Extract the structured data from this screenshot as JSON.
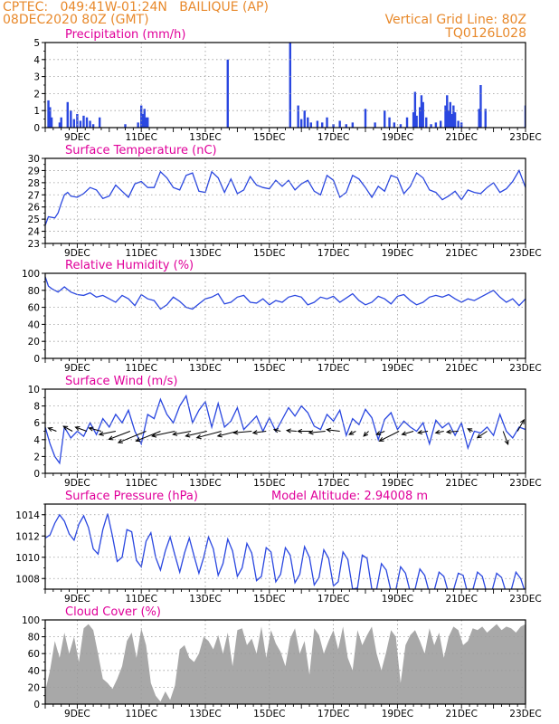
{
  "header": {
    "line1": "CPTEC:   049:41W-01:24N   BAILIQUE (AP)",
    "line2": "08DEC2020 80Z (GMT)",
    "right1": "Vertical Grid Line: 80Z",
    "right2": "TQ0126L028",
    "color": "#e8892b"
  },
  "colors": {
    "title": "#e0009a",
    "series": "#2a47e0",
    "cloud": "#a8a8a8",
    "grid": "#9a9a9a",
    "axis": "#000000"
  },
  "chart_data": [
    {
      "type": "bar",
      "title": "Precipitation (mm/h)",
      "ylim": [
        0,
        5
      ],
      "yticks": [
        0,
        1,
        2,
        3,
        4,
        5
      ],
      "x_range_days": [
        8.0,
        23.0
      ],
      "x_ticks": [
        "9DEC",
        "11DEC",
        "13DEC",
        "15DEC",
        "17DEC",
        "19DEC",
        "21DEC",
        "23DEC"
      ],
      "x": [
        8.1,
        8.15,
        8.2,
        8.45,
        8.5,
        8.7,
        8.8,
        8.9,
        9.0,
        9.1,
        9.2,
        9.3,
        9.4,
        9.5,
        9.7,
        10.5,
        10.9,
        11.0,
        11.05,
        11.1,
        11.15,
        11.2,
        13.7,
        15.65,
        15.9,
        16.0,
        16.1,
        16.2,
        16.3,
        16.5,
        16.65,
        16.8,
        17.0,
        17.2,
        17.4,
        17.6,
        18.0,
        18.3,
        18.6,
        18.75,
        18.9,
        19.1,
        19.3,
        19.5,
        19.55,
        19.6,
        19.7,
        19.75,
        19.8,
        19.9,
        20.05,
        20.2,
        20.35,
        20.5,
        20.55,
        20.6,
        20.65,
        20.7,
        20.75,
        20.8,
        20.9,
        21.0,
        21.55,
        21.6,
        21.75,
        23.0
      ],
      "values": [
        1.6,
        1.2,
        0.6,
        0.3,
        0.6,
        1.5,
        1.0,
        0.5,
        0.8,
        0.4,
        0.7,
        0.6,
        0.4,
        0.2,
        0.6,
        0.2,
        0.3,
        1.3,
        0.8,
        1.1,
        0.6,
        0.6,
        4.0,
        5.0,
        1.3,
        0.5,
        1.0,
        0.6,
        0.3,
        0.4,
        0.3,
        0.6,
        0.2,
        0.4,
        0.2,
        0.3,
        1.1,
        0.3,
        1.0,
        0.6,
        0.3,
        0.2,
        0.6,
        0.9,
        2.1,
        0.7,
        1.2,
        1.9,
        1.5,
        0.6,
        0.2,
        0.3,
        0.4,
        1.3,
        1.9,
        1.0,
        1.5,
        0.8,
        1.3,
        0.9,
        0.4,
        0.3,
        1.1,
        2.5,
        1.1,
        1.3
      ]
    },
    {
      "type": "line",
      "title": "Surface Temperature (nC)",
      "ylim": [
        23,
        30
      ],
      "yticks": [
        23,
        24,
        25,
        26,
        27,
        28,
        29,
        30
      ],
      "x_range_days": [
        8.0,
        23.0
      ],
      "x_ticks": [
        "9DEC",
        "11DEC",
        "13DEC",
        "15DEC",
        "17DEC",
        "19DEC",
        "21DEC",
        "23DEC"
      ],
      "x": [
        8.0,
        8.1,
        8.3,
        8.4,
        8.5,
        8.6,
        8.7,
        8.8,
        9.0,
        9.2,
        9.4,
        9.6,
        9.8,
        10.0,
        10.2,
        10.4,
        10.6,
        10.8,
        11.0,
        11.2,
        11.4,
        11.6,
        11.8,
        12.0,
        12.2,
        12.4,
        12.6,
        12.8,
        13.0,
        13.2,
        13.4,
        13.6,
        13.8,
        14.0,
        14.2,
        14.4,
        14.6,
        14.8,
        15.0,
        15.2,
        15.4,
        15.6,
        15.8,
        16.0,
        16.2,
        16.4,
        16.6,
        16.8,
        17.0,
        17.2,
        17.4,
        17.6,
        17.8,
        18.0,
        18.2,
        18.4,
        18.6,
        18.8,
        19.0,
        19.2,
        19.4,
        19.6,
        19.8,
        20.0,
        20.2,
        20.4,
        20.6,
        20.8,
        21.0,
        21.2,
        21.4,
        21.6,
        21.8,
        22.0,
        22.2,
        22.4,
        22.6,
        22.8,
        23.0
      ],
      "values": [
        24.5,
        25.2,
        25.1,
        25.5,
        26.3,
        27.0,
        27.2,
        26.9,
        26.8,
        27.1,
        27.6,
        27.4,
        26.7,
        26.9,
        27.8,
        27.3,
        26.8,
        27.9,
        28.1,
        27.6,
        27.6,
        28.9,
        28.4,
        27.6,
        27.4,
        28.6,
        28.8,
        27.3,
        27.2,
        28.9,
        28.4,
        27.2,
        28.3,
        27.1,
        27.4,
        28.5,
        27.8,
        27.6,
        27.5,
        28.2,
        27.7,
        28.2,
        27.4,
        27.9,
        28.2,
        27.3,
        27.0,
        28.6,
        28.2,
        26.8,
        27.2,
        28.6,
        28.3,
        27.6,
        26.8,
        27.7,
        27.3,
        28.6,
        28.4,
        27.1,
        27.7,
        28.8,
        28.4,
        27.4,
        27.2,
        26.6,
        26.9,
        27.3,
        26.6,
        27.4,
        27.2,
        27.1,
        27.6,
        28.0,
        27.2,
        27.5,
        28.1,
        29.0,
        27.6
      ]
    },
    {
      "type": "line",
      "title": "Relative Humidity (%)",
      "ylim": [
        0,
        100
      ],
      "yticks": [
        0,
        20,
        40,
        60,
        80,
        100
      ],
      "x_range_days": [
        8.0,
        23.0
      ],
      "x_ticks": [
        "9DEC",
        "11DEC",
        "13DEC",
        "15DEC",
        "17DEC",
        "19DEC",
        "21DEC",
        "23DEC"
      ],
      "x": [
        8.0,
        8.1,
        8.2,
        8.4,
        8.6,
        8.8,
        9.0,
        9.2,
        9.4,
        9.6,
        9.8,
        10.0,
        10.2,
        10.4,
        10.6,
        10.8,
        11.0,
        11.2,
        11.4,
        11.6,
        11.8,
        12.0,
        12.2,
        12.4,
        12.6,
        12.8,
        13.0,
        13.2,
        13.4,
        13.6,
        13.8,
        14.0,
        14.2,
        14.4,
        14.6,
        14.8,
        15.0,
        15.2,
        15.4,
        15.6,
        15.8,
        16.0,
        16.2,
        16.4,
        16.6,
        16.8,
        17.0,
        17.2,
        17.4,
        17.6,
        17.8,
        18.0,
        18.2,
        18.4,
        18.6,
        18.8,
        19.0,
        19.2,
        19.4,
        19.6,
        19.8,
        20.0,
        20.2,
        20.4,
        20.6,
        20.8,
        21.0,
        21.2,
        21.4,
        21.6,
        21.8,
        22.0,
        22.2,
        22.4,
        22.6,
        22.8,
        23.0
      ],
      "values": [
        96,
        85,
        82,
        78,
        84,
        78,
        75,
        74,
        77,
        72,
        74,
        70,
        66,
        74,
        70,
        62,
        75,
        70,
        68,
        58,
        63,
        72,
        67,
        60,
        58,
        64,
        70,
        72,
        76,
        64,
        66,
        72,
        74,
        66,
        65,
        70,
        63,
        68,
        66,
        72,
        74,
        72,
        63,
        66,
        72,
        70,
        73,
        66,
        71,
        76,
        68,
        63,
        66,
        73,
        70,
        64,
        73,
        75,
        68,
        63,
        66,
        72,
        74,
        72,
        75,
        70,
        66,
        70,
        68,
        72,
        76,
        80,
        72,
        66,
        70,
        62,
        70
      ]
    },
    {
      "type": "line",
      "title": "Surface Wind (m/s)",
      "ylim": [
        0,
        10
      ],
      "yticks": [
        0,
        2,
        4,
        6,
        8,
        10
      ],
      "x_range_days": [
        8.0,
        23.0
      ],
      "x_ticks": [
        "9DEC",
        "11DEC",
        "13DEC",
        "15DEC",
        "17DEC",
        "19DEC",
        "21DEC",
        "23DEC"
      ],
      "x": [
        8.0,
        8.15,
        8.3,
        8.45,
        8.6,
        8.8,
        9.0,
        9.2,
        9.4,
        9.6,
        9.8,
        10.0,
        10.2,
        10.4,
        10.6,
        10.8,
        11.0,
        11.2,
        11.4,
        11.6,
        11.8,
        12.0,
        12.2,
        12.4,
        12.6,
        12.8,
        13.0,
        13.2,
        13.4,
        13.6,
        13.8,
        14.0,
        14.2,
        14.4,
        14.6,
        14.8,
        15.0,
        15.2,
        15.4,
        15.6,
        15.8,
        16.0,
        16.2,
        16.4,
        16.6,
        16.8,
        17.0,
        17.2,
        17.4,
        17.6,
        17.8,
        18.0,
        18.2,
        18.4,
        18.6,
        18.8,
        19.0,
        19.2,
        19.4,
        19.6,
        19.8,
        20.0,
        20.2,
        20.4,
        20.6,
        20.8,
        21.0,
        21.2,
        21.4,
        21.6,
        21.8,
        22.0,
        22.2,
        22.4,
        22.6,
        22.8,
        23.0
      ],
      "values": [
        5.5,
        3.5,
        2.0,
        1.2,
        5.5,
        4.2,
        5.0,
        4.4,
        6.0,
        4.6,
        6.5,
        5.5,
        7.0,
        6.0,
        7.5,
        5.0,
        3.5,
        7.0,
        6.5,
        8.8,
        7.0,
        6.0,
        8.0,
        9.2,
        6.0,
        7.5,
        8.5,
        5.5,
        8.3,
        5.5,
        6.2,
        7.8,
        5.2,
        6.0,
        6.8,
        5.0,
        6.6,
        5.0,
        6.4,
        7.8,
        6.8,
        8.0,
        7.2,
        5.6,
        5.2,
        7.0,
        6.2,
        7.5,
        4.5,
        6.5,
        5.8,
        7.6,
        6.6,
        4.0,
        6.4,
        7.2,
        5.2,
        6.2,
        5.5,
        5.0,
        6.0,
        3.5,
        6.3,
        5.4,
        6.0,
        4.5,
        6.0,
        3.0,
        5.0,
        4.8,
        5.5,
        4.5,
        7.0,
        5.0,
        4.2,
        5.5,
        5.2
      ],
      "arrow_y": 5,
      "arrow_x": [
        8.35,
        8.85,
        9.3,
        9.75,
        10.2,
        10.65,
        11.15,
        11.6,
        12.05,
        12.55,
        13.05,
        13.5,
        14.0,
        14.45,
        14.9,
        15.35,
        15.85,
        16.3,
        16.75,
        17.2,
        17.7,
        18.1,
        18.6,
        19.05,
        19.5,
        19.95,
        20.45,
        20.9,
        21.35,
        21.8,
        22.3,
        22.75
      ],
      "arrow_u": [
        -1.0,
        -1.1,
        -1.4,
        -1.5,
        -2.0,
        -2.6,
        -3.4,
        -3.0,
        -2.8,
        -2.2,
        -2.6,
        -3.0,
        -2.4,
        -2.2,
        -1.6,
        -0.8,
        -1.2,
        -1.6,
        -2.0,
        -1.6,
        -0.8,
        -0.6,
        -1.0,
        -2.4,
        -1.4,
        -1.2,
        -1.0,
        -1.4,
        -0.6,
        -1.2,
        0.6,
        0.8
      ],
      "arrow_v": [
        0.4,
        0.6,
        0.5,
        0.4,
        -0.4,
        -1.0,
        -1.4,
        -1.2,
        -0.6,
        -0.4,
        -0.6,
        -0.8,
        -0.6,
        -0.2,
        -0.2,
        0.2,
        0.1,
        0.0,
        -0.2,
        0.2,
        -0.4,
        -0.6,
        -0.4,
        -1.2,
        -0.4,
        -0.2,
        -0.2,
        -0.1,
        0.3,
        -0.8,
        -1.6,
        1.4
      ]
    },
    {
      "type": "line",
      "title": "Surface Pressure (hPa)",
      "annotation": "Model Altitude: 2.94008 m",
      "ylim": [
        1007,
        1015
      ],
      "yticks": [
        1008,
        1010,
        1012,
        1014
      ],
      "x_range_days": [
        8.0,
        23.0
      ],
      "x_ticks": [
        "9DEC",
        "11DEC",
        "13DEC",
        "15DEC",
        "17DEC",
        "19DEC",
        "21DEC",
        "23DEC"
      ],
      "x": [
        8.0,
        8.15,
        8.3,
        8.45,
        8.6,
        8.75,
        8.9,
        9.05,
        9.2,
        9.35,
        9.5,
        9.65,
        9.8,
        9.95,
        10.1,
        10.25,
        10.4,
        10.55,
        10.7,
        10.85,
        11.0,
        11.15,
        11.3,
        11.45,
        11.6,
        11.75,
        11.9,
        12.05,
        12.2,
        12.35,
        12.5,
        12.65,
        12.8,
        12.95,
        13.1,
        13.25,
        13.4,
        13.55,
        13.7,
        13.85,
        14.0,
        14.15,
        14.3,
        14.45,
        14.6,
        14.75,
        14.9,
        15.05,
        15.2,
        15.35,
        15.5,
        15.65,
        15.8,
        15.95,
        16.1,
        16.25,
        16.4,
        16.55,
        16.7,
        16.85,
        17.0,
        17.15,
        17.3,
        17.45,
        17.6,
        17.75,
        17.9,
        18.05,
        18.2,
        18.35,
        18.5,
        18.65,
        18.8,
        18.95,
        19.1,
        19.25,
        19.4,
        19.55,
        19.7,
        19.85,
        20.0,
        20.15,
        20.3,
        20.45,
        20.6,
        20.75,
        20.9,
        21.05,
        21.2,
        21.35,
        21.5,
        21.65,
        21.8,
        21.95,
        22.1,
        22.25,
        22.4,
        22.55,
        22.7,
        22.85,
        23.0
      ],
      "values": [
        1011.8,
        1012.1,
        1013.2,
        1014.0,
        1013.4,
        1012.2,
        1011.6,
        1013.1,
        1013.9,
        1012.8,
        1010.8,
        1010.3,
        1012.6,
        1014.1,
        1012.0,
        1009.6,
        1010.0,
        1012.6,
        1012.4,
        1009.7,
        1009.1,
        1011.5,
        1012.3,
        1010.0,
        1008.8,
        1010.6,
        1011.9,
        1010.2,
        1008.6,
        1010.4,
        1011.8,
        1010.1,
        1008.5,
        1010.0,
        1011.9,
        1010.8,
        1008.3,
        1009.4,
        1011.7,
        1010.6,
        1008.2,
        1009.0,
        1011.3,
        1010.4,
        1007.8,
        1008.2,
        1010.9,
        1010.5,
        1007.7,
        1008.4,
        1010.9,
        1010.2,
        1007.6,
        1008.4,
        1011.0,
        1010.0,
        1007.4,
        1008.1,
        1010.7,
        1009.9,
        1007.3,
        1007.7,
        1010.5,
        1009.8,
        1007.0,
        1007.1,
        1010.2,
        1009.9,
        1007.0,
        1007.0,
        1009.4,
        1008.8,
        1006.8,
        1006.9,
        1009.1,
        1008.5,
        1006.7,
        1007.0,
        1008.9,
        1008.3,
        1006.6,
        1006.9,
        1008.6,
        1008.2,
        1006.6,
        1006.9,
        1008.5,
        1008.3,
        1006.5,
        1006.9,
        1008.6,
        1008.2,
        1006.5,
        1006.8,
        1008.5,
        1008.1,
        1006.6,
        1006.9,
        1008.6,
        1008.0,
        1006.6
      ]
    },
    {
      "type": "area",
      "title": "Cloud Cover (%)",
      "ylim": [
        0,
        100
      ],
      "yticks": [
        0,
        20,
        40,
        60,
        80,
        100
      ],
      "x_range_days": [
        8.0,
        23.0
      ],
      "x_ticks": [
        "9DEC",
        "11DEC",
        "13DEC",
        "15DEC",
        "17DEC",
        "19DEC",
        "21DEC",
        "23DEC"
      ],
      "x": [
        8.0,
        8.15,
        8.3,
        8.45,
        8.6,
        8.75,
        8.9,
        9.05,
        9.2,
        9.35,
        9.5,
        9.65,
        9.8,
        9.95,
        10.1,
        10.25,
        10.4,
        10.55,
        10.7,
        10.85,
        11.0,
        11.15,
        11.3,
        11.45,
        11.6,
        11.75,
        11.9,
        12.05,
        12.2,
        12.35,
        12.5,
        12.65,
        12.8,
        12.95,
        13.1,
        13.25,
        13.4,
        13.55,
        13.7,
        13.85,
        14.0,
        14.15,
        14.3,
        14.45,
        14.6,
        14.75,
        14.9,
        15.05,
        15.2,
        15.35,
        15.5,
        15.65,
        15.8,
        15.95,
        16.1,
        16.25,
        16.4,
        16.55,
        16.7,
        16.85,
        17.0,
        17.15,
        17.3,
        17.45,
        17.6,
        17.75,
        17.9,
        18.05,
        18.2,
        18.35,
        18.5,
        18.65,
        18.8,
        18.95,
        19.1,
        19.25,
        19.4,
        19.55,
        19.7,
        19.85,
        20.0,
        20.15,
        20.3,
        20.45,
        20.6,
        20.75,
        20.9,
        21.05,
        21.2,
        21.35,
        21.5,
        21.65,
        21.8,
        21.95,
        22.1,
        22.25,
        22.4,
        22.55,
        22.7,
        22.85,
        23.0
      ],
      "values": [
        15,
        40,
        75,
        55,
        85,
        60,
        80,
        50,
        90,
        95,
        88,
        60,
        30,
        25,
        18,
        30,
        45,
        75,
        85,
        55,
        90,
        70,
        25,
        10,
        3,
        15,
        5,
        22,
        65,
        70,
        55,
        50,
        60,
        80,
        75,
        65,
        82,
        60,
        85,
        45,
        88,
        90,
        70,
        78,
        60,
        92,
        55,
        88,
        72,
        62,
        45,
        78,
        90,
        60,
        75,
        35,
        90,
        82,
        60,
        75,
        88,
        65,
        92,
        55,
        40,
        88,
        70,
        82,
        92,
        60,
        40,
        62,
        88,
        80,
        25,
        70,
        82,
        88,
        75,
        60,
        90,
        70,
        85,
        55,
        80,
        92,
        88,
        70,
        75,
        90,
        88,
        92,
        85,
        90,
        95,
        88,
        92,
        90,
        85,
        92,
        95
      ]
    }
  ]
}
